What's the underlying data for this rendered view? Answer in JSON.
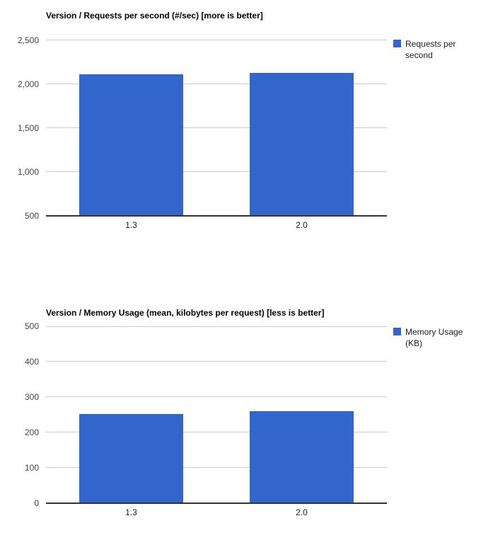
{
  "colors": {
    "bar": "#3366cc",
    "gridline": "#cccccc",
    "baseline": "#333333",
    "title": "#000000",
    "tick_label": "#444444",
    "category_label": "#222222",
    "legend_text": "#222222",
    "background": "#ffffff"
  },
  "chart_data": [
    {
      "type": "bar",
      "title": "Version / Requests per second (#/sec) [more is better]",
      "xlabel": "",
      "ylabel": "",
      "categories": [
        "1.3",
        "2.0"
      ],
      "series": [
        {
          "name": "Requests per second",
          "values": [
            2110,
            2125
          ]
        }
      ],
      "ylim": [
        500,
        2500
      ],
      "yticks": [
        {
          "value": 500,
          "label": "500"
        },
        {
          "value": 1000,
          "label": "1,000"
        },
        {
          "value": 1500,
          "label": "1,500"
        },
        {
          "value": 2000,
          "label": "2,000"
        },
        {
          "value": 2500,
          "label": "2,500"
        }
      ],
      "grid": true,
      "legend": {
        "position": "right",
        "label_lines": [
          "Requests per",
          "second"
        ]
      }
    },
    {
      "type": "bar",
      "title": "Version / Memory Usage (mean, kilobytes per request) [less is better]",
      "xlabel": "",
      "ylabel": "",
      "categories": [
        "1.3",
        "2.0"
      ],
      "series": [
        {
          "name": "Memory Usage (KB)",
          "values": [
            252,
            260
          ]
        }
      ],
      "ylim": [
        0,
        500
      ],
      "yticks": [
        {
          "value": 0,
          "label": "0"
        },
        {
          "value": 100,
          "label": "100"
        },
        {
          "value": 200,
          "label": "200"
        },
        {
          "value": 300,
          "label": "300"
        },
        {
          "value": 400,
          "label": "400"
        },
        {
          "value": 500,
          "label": "500"
        }
      ],
      "grid": true,
      "legend": {
        "position": "right",
        "label_lines": [
          "Memory Usage",
          "(KB)"
        ]
      }
    }
  ]
}
